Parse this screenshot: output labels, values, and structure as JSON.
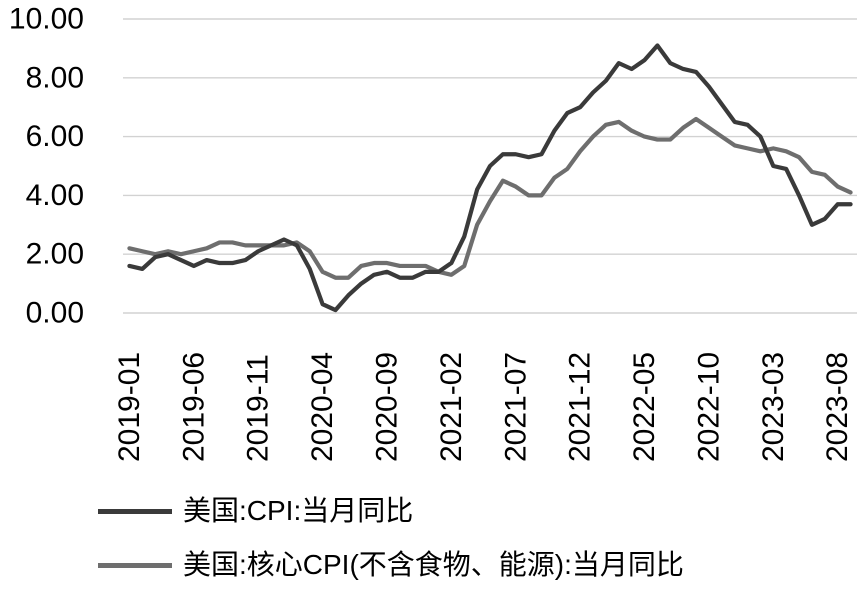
{
  "chart_data": {
    "type": "line",
    "title": "",
    "xlabel": "",
    "ylabel": "",
    "ylim": [
      0,
      10
    ],
    "y_ticks": [
      0,
      2,
      4,
      6,
      8,
      10
    ],
    "y_tick_labels": [
      "0.00",
      "2.00",
      "4.00",
      "6.00",
      "8.00",
      "10.00"
    ],
    "x_tick_labels": [
      "2019-01",
      "2019-06",
      "2019-11",
      "2020-04",
      "2020-09",
      "2021-02",
      "2021-07",
      "2021-12",
      "2022-05",
      "2022-10",
      "2023-03",
      "2023-08"
    ],
    "x_tick_step": 5,
    "grid": "horizontal",
    "legend_position": "bottom-left",
    "x": [
      "2019-01",
      "2019-02",
      "2019-03",
      "2019-04",
      "2019-05",
      "2019-06",
      "2019-07",
      "2019-08",
      "2019-09",
      "2019-10",
      "2019-11",
      "2019-12",
      "2020-01",
      "2020-02",
      "2020-03",
      "2020-04",
      "2020-05",
      "2020-06",
      "2020-07",
      "2020-08",
      "2020-09",
      "2020-10",
      "2020-11",
      "2020-12",
      "2021-01",
      "2021-02",
      "2021-03",
      "2021-04",
      "2021-05",
      "2021-06",
      "2021-07",
      "2021-08",
      "2021-09",
      "2021-10",
      "2021-11",
      "2021-12",
      "2022-01",
      "2022-02",
      "2022-03",
      "2022-04",
      "2022-05",
      "2022-06",
      "2022-07",
      "2022-08",
      "2022-09",
      "2022-10",
      "2022-11",
      "2022-12",
      "2023-01",
      "2023-02",
      "2023-03",
      "2023-04",
      "2023-05",
      "2023-06",
      "2023-07",
      "2023-08",
      "2023-09"
    ],
    "series": [
      {
        "name": "美国:CPI:当月同比",
        "color": "#3a3a3a",
        "values": [
          1.6,
          1.5,
          1.9,
          2.0,
          1.8,
          1.6,
          1.8,
          1.7,
          1.7,
          1.8,
          2.1,
          2.3,
          2.5,
          2.3,
          1.5,
          0.3,
          0.1,
          0.6,
          1.0,
          1.3,
          1.4,
          1.2,
          1.2,
          1.4,
          1.4,
          1.7,
          2.6,
          4.2,
          5.0,
          5.4,
          5.4,
          5.3,
          5.4,
          6.2,
          6.8,
          7.0,
          7.5,
          7.9,
          8.5,
          8.3,
          8.6,
          9.1,
          8.5,
          8.3,
          8.2,
          7.7,
          7.1,
          6.5,
          6.4,
          6.0,
          5.0,
          4.9,
          4.0,
          3.0,
          3.2,
          3.7,
          3.7
        ]
      },
      {
        "name": "美国:核心CPI(不含食物、能源):当月同比",
        "color": "#6e6e6e",
        "values": [
          2.2,
          2.1,
          2.0,
          2.1,
          2.0,
          2.1,
          2.2,
          2.4,
          2.4,
          2.3,
          2.3,
          2.3,
          2.3,
          2.4,
          2.1,
          1.4,
          1.2,
          1.2,
          1.6,
          1.7,
          1.7,
          1.6,
          1.6,
          1.6,
          1.4,
          1.3,
          1.6,
          3.0,
          3.8,
          4.5,
          4.3,
          4.0,
          4.0,
          4.6,
          4.9,
          5.5,
          6.0,
          6.4,
          6.5,
          6.2,
          6.0,
          5.9,
          5.9,
          6.3,
          6.6,
          6.3,
          6.0,
          5.7,
          5.6,
          5.5,
          5.6,
          5.5,
          5.3,
          4.8,
          4.7,
          4.3,
          4.1
        ]
      }
    ],
    "colors": {
      "gridline": "#d2d2d2",
      "axis_text": "#000000",
      "background": "#ffffff"
    }
  }
}
